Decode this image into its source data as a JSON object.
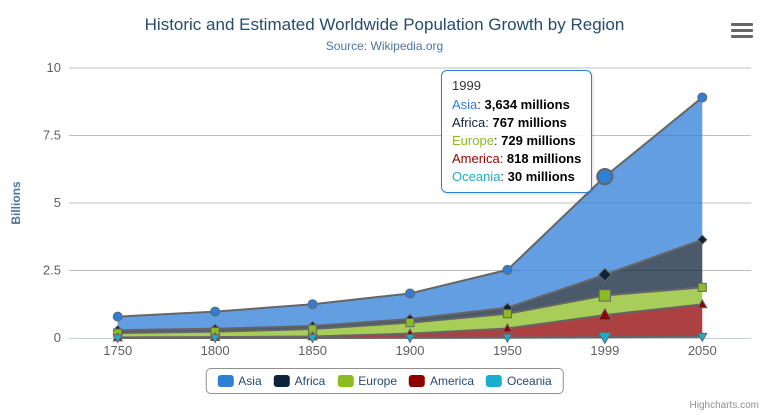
{
  "title": "Historic and Estimated Worldwide Population Growth by Region",
  "subtitle": "Source: Wikipedia.org",
  "credits": "Highcharts.com",
  "y_axis_title": "Billions",
  "icons": {
    "menu": "hamburger-icon"
  },
  "colors": {
    "title": "#274b6d",
    "subtitle": "#4d759e",
    "axis_label": "#606060",
    "grid_line": "#C0C0C0",
    "axis_line": "#C0D0E0",
    "series_line": "#666666",
    "legend_border": "#909090",
    "tooltip_border": "#2f7ed8"
  },
  "tooltip": {
    "header": "1999",
    "rows": [
      {
        "name": "Asia",
        "value": "3,634 millions",
        "color": "#2f7ed8"
      },
      {
        "name": "Africa",
        "value": "767 millions",
        "color": "#0d233a"
      },
      {
        "name": "Europe",
        "value": "729 millions",
        "color": "#8bbc21"
      },
      {
        "name": "America",
        "value": "818 millions",
        "color": "#910000"
      },
      {
        "name": "Oceania",
        "value": "30 millions",
        "color": "#1aadce"
      }
    ]
  },
  "chart_data": {
    "type": "area",
    "stacking": "normal",
    "title": "Historic and Estimated Worldwide Population Growth by Region",
    "subtitle": "Source: Wikipedia.org",
    "categories": [
      "1750",
      "1800",
      "1850",
      "1900",
      "1950",
      "1999",
      "2050"
    ],
    "series": [
      {
        "name": "Asia",
        "color": "#2f7ed8",
        "marker": "circle",
        "values_millions": [
          502,
          635,
          809,
          947,
          1402,
          3634,
          5268
        ]
      },
      {
        "name": "Africa",
        "color": "#0d233a",
        "marker": "diamond",
        "values_millions": [
          106,
          107,
          111,
          133,
          221,
          767,
          1766
        ]
      },
      {
        "name": "Europe",
        "color": "#8bbc21",
        "marker": "square",
        "values_millions": [
          163,
          203,
          276,
          408,
          547,
          729,
          628
        ]
      },
      {
        "name": "America",
        "color": "#910000",
        "marker": "triangle",
        "values_millions": [
          18,
          31,
          54,
          156,
          339,
          818,
          1201
        ]
      },
      {
        "name": "Oceania",
        "color": "#1aadce",
        "marker": "triangle-down",
        "values_millions": [
          2,
          2,
          2,
          6,
          13,
          30,
          46
        ]
      }
    ],
    "stack_order_bottom_to_top": [
      "Oceania",
      "America",
      "Europe",
      "Africa",
      "Asia"
    ],
    "values_unit": "millions",
    "ylabel": "Billions",
    "ylim": [
      0,
      10
    ],
    "yticks": [
      "0",
      "2.5",
      "5",
      "7.5",
      "10"
    ],
    "grid": true,
    "fill_opacity": 0.75,
    "hover_category": "1999",
    "hover_index": 5,
    "hover_series": "Asia",
    "legend_position": "bottom"
  }
}
